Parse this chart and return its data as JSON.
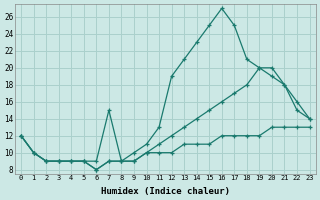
{
  "xlabel": "Humidex (Indice chaleur)",
  "bg_color": "#cce8e5",
  "grid_color": "#aad0cc",
  "line_color": "#1a7a6e",
  "x_ticks": [
    0,
    1,
    2,
    3,
    4,
    5,
    6,
    7,
    8,
    9,
    10,
    11,
    12,
    13,
    14,
    15,
    16,
    17,
    18,
    19,
    20,
    21,
    22,
    23
  ],
  "y_ticks": [
    8,
    10,
    12,
    14,
    16,
    18,
    20,
    22,
    24,
    26
  ],
  "xlim": [
    -0.5,
    23.5
  ],
  "ylim": [
    7.5,
    27.5
  ],
  "series": [
    {
      "x": [
        0,
        1,
        2,
        3,
        4,
        5,
        6,
        7,
        8,
        9,
        10,
        11,
        12,
        13,
        14,
        15,
        16,
        17,
        18,
        19,
        20,
        21,
        22,
        23
      ],
      "y": [
        12,
        10,
        9,
        9,
        9,
        9,
        8,
        9,
        9,
        10,
        11,
        13,
        19,
        21,
        23,
        25,
        27,
        25,
        21,
        20,
        19,
        18,
        16,
        14
      ]
    },
    {
      "x": [
        0,
        1,
        2,
        3,
        4,
        5,
        6,
        7,
        8,
        9,
        10,
        11,
        12,
        13,
        14,
        15,
        16,
        17,
        18,
        19,
        20,
        21,
        22,
        23
      ],
      "y": [
        12,
        10,
        9,
        9,
        9,
        9,
        9,
        15,
        9,
        9,
        10,
        11,
        12,
        13,
        14,
        15,
        16,
        17,
        18,
        20,
        20,
        18,
        15,
        14
      ]
    },
    {
      "x": [
        0,
        1,
        2,
        3,
        4,
        5,
        6,
        7,
        8,
        9,
        10,
        11,
        12,
        13,
        14,
        15,
        16,
        17,
        18,
        19,
        20,
        21,
        22,
        23
      ],
      "y": [
        12,
        10,
        9,
        9,
        9,
        9,
        8,
        9,
        9,
        9,
        10,
        10,
        10,
        11,
        11,
        11,
        12,
        12,
        12,
        12,
        13,
        13,
        13,
        13
      ]
    }
  ]
}
